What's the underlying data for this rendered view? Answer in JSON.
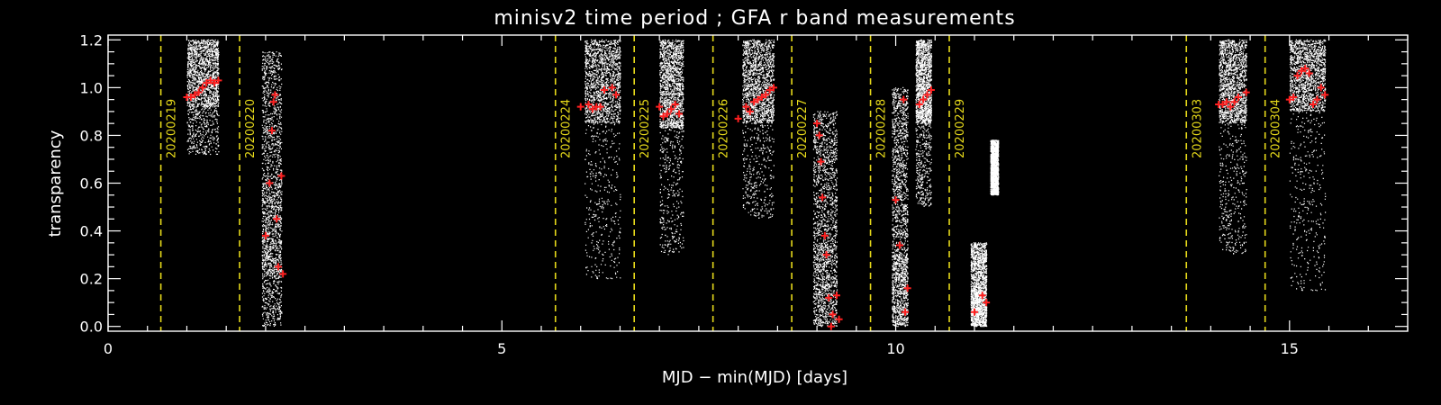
{
  "chart_data": {
    "type": "scatter",
    "title": "minisv2 time period ; GFA r band measurements",
    "xlabel": "MJD − min(MJD) [days]",
    "ylabel": "transparency",
    "xlim": [
      0,
      16.5
    ],
    "ylim": [
      -0.02,
      1.22
    ],
    "x_major_ticks": [
      0,
      5,
      10,
      15
    ],
    "x_tick_labels": [
      "0",
      "5",
      "10",
      "15"
    ],
    "x_minor_step": 0.5,
    "y_major_ticks": [
      0.0,
      0.2,
      0.4,
      0.6,
      0.8,
      1.0,
      1.2
    ],
    "y_tick_labels": [
      "0.0",
      "0.2",
      "0.4",
      "0.6",
      "0.8",
      "1.0",
      "1.2"
    ],
    "y_minor_step": 0.05,
    "grid": false,
    "night_markers": [
      {
        "x": 0.67,
        "label": "20200219"
      },
      {
        "x": 1.67,
        "label": "20200220"
      },
      {
        "x": 5.68,
        "label": "20200224"
      },
      {
        "x": 6.68,
        "label": "20200225"
      },
      {
        "x": 7.68,
        "label": "20200226"
      },
      {
        "x": 8.68,
        "label": "20200227"
      },
      {
        "x": 9.68,
        "label": "20200228"
      },
      {
        "x": 10.68,
        "label": "20200229"
      },
      {
        "x": 13.69,
        "label": "20200303"
      },
      {
        "x": 14.69,
        "label": "20200304"
      }
    ],
    "series": [
      {
        "role": "per-exposure GFA measurements",
        "color": "#ffffff",
        "clusters": [
          {
            "x": [
              1.0,
              1.4
            ],
            "core": [
              0.92,
              1.2
            ],
            "tail": [
              0.72,
              0.92
            ]
          },
          {
            "x": [
              1.95,
              2.2
            ],
            "core": [
              0.0,
              1.15
            ],
            "tail": [
              0.2,
              0.6
            ]
          },
          {
            "x": [
              6.05,
              6.5
            ],
            "core": [
              0.85,
              1.2
            ],
            "tail": [
              0.2,
              0.85
            ]
          },
          {
            "x": [
              7.0,
              7.3
            ],
            "core": [
              0.83,
              1.2
            ],
            "tail": [
              0.3,
              0.85
            ]
          },
          {
            "x": [
              8.05,
              8.45
            ],
            "core": [
              0.85,
              1.2
            ],
            "tail": [
              0.45,
              0.9
            ]
          },
          {
            "x": [
              8.95,
              9.25
            ],
            "core": [
              0.0,
              0.9
            ],
            "tail": [
              0.0,
              0.35
            ]
          },
          {
            "x": [
              9.95,
              10.15
            ],
            "core": [
              0.0,
              1.0
            ],
            "tail": [
              0.0,
              0.3
            ]
          },
          {
            "x": [
              10.25,
              10.45
            ],
            "core": [
              0.85,
              1.2
            ],
            "tail": [
              0.5,
              0.9
            ]
          },
          {
            "x": [
              10.95,
              11.15
            ],
            "core": [
              0.0,
              0.35
            ],
            "tail": [
              0.0,
              0.15
            ]
          },
          {
            "x": [
              11.2,
              11.3
            ],
            "core": [
              0.55,
              0.78
            ],
            "tail": [
              0.55,
              0.78
            ]
          },
          {
            "x": [
              14.1,
              14.45
            ],
            "core": [
              0.85,
              1.2
            ],
            "tail": [
              0.3,
              0.85
            ]
          },
          {
            "x": [
              15.0,
              15.45
            ],
            "core": [
              0.9,
              1.2
            ],
            "tail": [
              0.15,
              0.9
            ]
          }
        ]
      },
      {
        "role": "median per exposure",
        "color": "#ff2020",
        "x": [
          1.0,
          1.05,
          1.1,
          1.15,
          1.2,
          1.25,
          1.3,
          1.35,
          1.4,
          2.0,
          2.05,
          2.08,
          2.1,
          2.12,
          2.14,
          2.16,
          2.2,
          2.22,
          6.0,
          6.1,
          6.15,
          6.2,
          6.25,
          6.3,
          6.4,
          6.45,
          7.0,
          7.05,
          7.1,
          7.15,
          7.2,
          7.25,
          8.0,
          8.1,
          8.15,
          8.2,
          8.25,
          8.3,
          8.35,
          8.4,
          8.45,
          9.0,
          9.03,
          9.05,
          9.07,
          9.1,
          9.12,
          9.15,
          9.18,
          9.2,
          9.25,
          9.28,
          10.0,
          10.05,
          10.1,
          10.12,
          10.15,
          10.3,
          10.35,
          10.4,
          10.45,
          11.0,
          11.1,
          11.15,
          14.1,
          14.15,
          14.2,
          14.25,
          14.3,
          14.35,
          14.45,
          15.0,
          15.05,
          15.1,
          15.15,
          15.2,
          15.25,
          15.3,
          15.35,
          15.4,
          15.45
        ],
        "y": [
          0.96,
          0.96,
          0.97,
          0.98,
          1.0,
          1.02,
          1.03,
          1.02,
          1.03,
          0.38,
          0.6,
          0.82,
          0.94,
          0.97,
          0.45,
          0.25,
          0.63,
          0.22,
          0.92,
          0.93,
          0.91,
          0.92,
          0.92,
          0.99,
          1.0,
          0.97,
          0.92,
          0.88,
          0.89,
          0.91,
          0.93,
          0.89,
          0.87,
          0.92,
          0.9,
          0.94,
          0.95,
          0.96,
          0.97,
          0.99,
          1.0,
          0.85,
          0.8,
          0.69,
          0.54,
          0.38,
          0.3,
          0.12,
          0.0,
          0.05,
          0.13,
          0.03,
          0.53,
          0.34,
          0.95,
          0.06,
          0.16,
          0.93,
          0.95,
          0.97,
          0.99,
          0.06,
          0.13,
          0.1,
          0.93,
          0.93,
          0.94,
          0.92,
          0.94,
          0.96,
          0.98,
          0.95,
          0.96,
          1.05,
          1.07,
          1.08,
          1.06,
          0.93,
          0.95,
          1.0,
          0.97
        ]
      }
    ]
  }
}
